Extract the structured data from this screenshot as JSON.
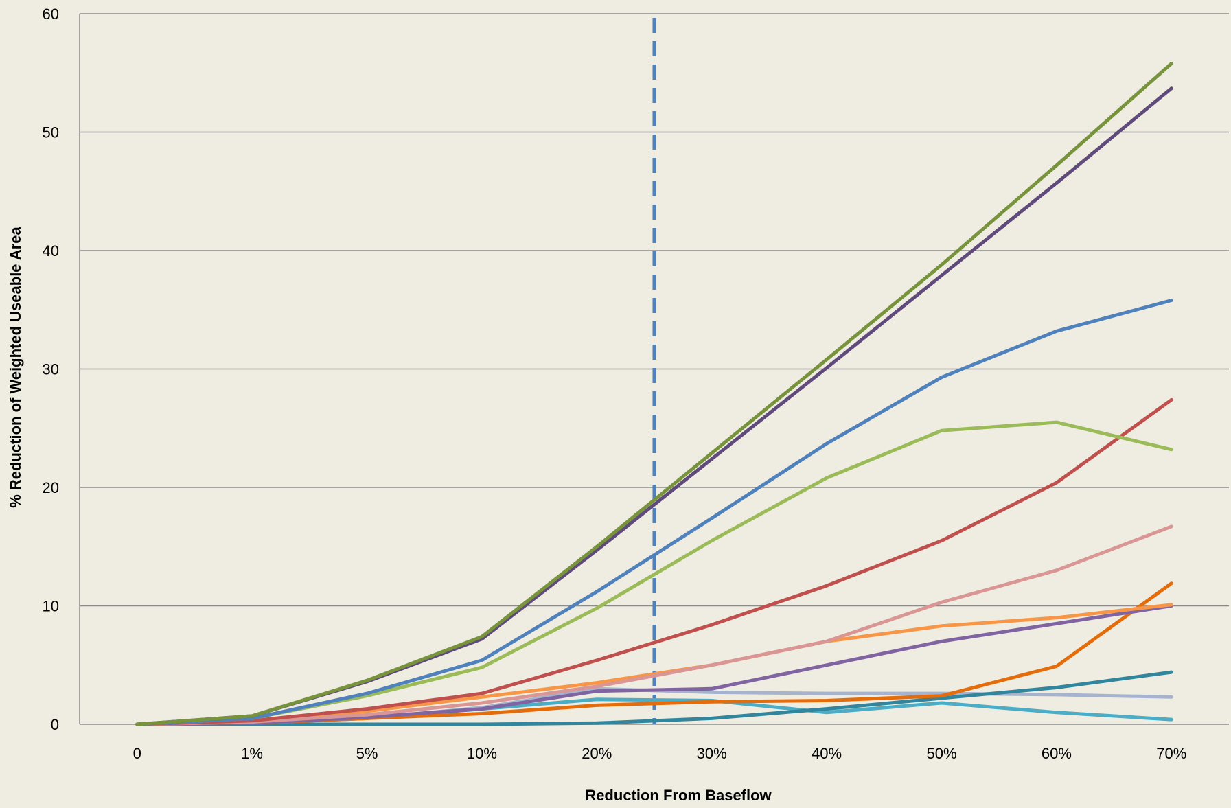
{
  "chart_data": {
    "type": "line",
    "title": "",
    "xlabel": "Reduction From Baseflow",
    "ylabel": "% Reduction of Weighted Useable Area",
    "categories": [
      "0",
      "1%",
      "5%",
      "10%",
      "20%",
      "30%",
      "40%",
      "50%",
      "60%",
      "70%"
    ],
    "yticks": [
      "0",
      "10",
      "20",
      "30",
      "40",
      "50",
      "60"
    ],
    "ylim": [
      0,
      60
    ],
    "grid": true,
    "legend": "none",
    "reference_line": {
      "x_position": 25,
      "style": "dashed",
      "color": "#4f81bd"
    },
    "series": [
      {
        "color": "#77933c",
        "values": [
          0,
          0.7,
          3.7,
          7.4,
          15.0,
          22.9,
          30.8,
          38.8,
          47.2,
          55.8
        ]
      },
      {
        "color": "#604a7b",
        "values": [
          0,
          0.7,
          3.6,
          7.2,
          14.7,
          22.4,
          30.1,
          37.9,
          45.7,
          53.7
        ]
      },
      {
        "color": "#4f81bd",
        "values": [
          0,
          0.5,
          2.6,
          5.4,
          11.2,
          17.4,
          23.7,
          29.3,
          33.2,
          35.8
        ]
      },
      {
        "color": "#9bbb59",
        "values": [
          0,
          0.5,
          2.4,
          4.8,
          9.8,
          15.5,
          20.8,
          24.8,
          25.5,
          23.2
        ]
      },
      {
        "color": "#c0504d",
        "values": [
          0,
          0.3,
          1.3,
          2.6,
          5.4,
          8.4,
          11.7,
          15.5,
          20.4,
          27.4
        ]
      },
      {
        "color": "#d99694",
        "values": [
          0,
          0.2,
          0.8,
          1.8,
          3.2,
          5.0,
          7.0,
          10.3,
          13.0,
          16.7
        ]
      },
      {
        "color": "#f79646",
        "values": [
          0,
          0.2,
          1.1,
          2.3,
          3.5,
          5.0,
          7.0,
          8.3,
          9.0,
          10.1
        ]
      },
      {
        "color": "#8064a2",
        "values": [
          0,
          0.1,
          0.6,
          1.3,
          2.8,
          3.0,
          5.0,
          7.0,
          8.5,
          10.0
        ]
      },
      {
        "color": "#e46c0a",
        "values": [
          0,
          0.1,
          0.5,
          0.9,
          1.6,
          1.9,
          2.0,
          2.4,
          4.9,
          11.9
        ]
      },
      {
        "color": "#31859c",
        "values": [
          0,
          0.0,
          0.0,
          0.0,
          0.1,
          0.5,
          1.3,
          2.2,
          3.1,
          4.4
        ]
      },
      {
        "color": "#a5b3cf",
        "values": [
          0,
          0.1,
          0.5,
          1.4,
          3.0,
          2.7,
          2.6,
          2.6,
          2.5,
          2.3
        ]
      },
      {
        "color": "#4bacc6",
        "values": [
          0,
          0.1,
          0.5,
          1.3,
          2.1,
          2.0,
          1.0,
          1.8,
          1.0,
          0.4
        ]
      }
    ]
  }
}
